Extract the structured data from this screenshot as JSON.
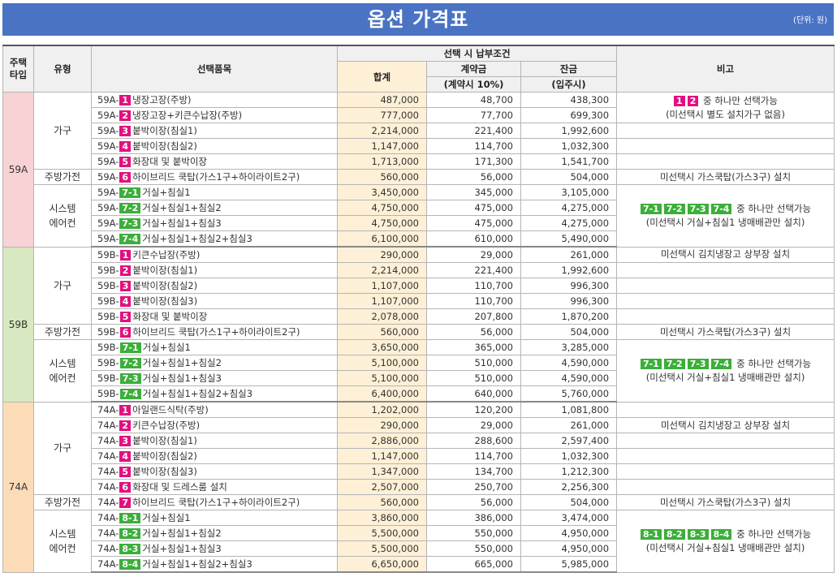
{
  "title": "옵션 가격표",
  "unit": "(단위: 원)",
  "headers": {
    "house_type": "주택타입",
    "category": "유형",
    "item": "선택품목",
    "payment_group": "선택 시 납부조건",
    "total": "합계",
    "deposit": "계약금",
    "deposit_sub": "(계약시 10%)",
    "balance": "잔금",
    "balance_sub": "(입주시)",
    "note": "비고"
  },
  "colors": {
    "title_bar": "#4a73c4",
    "badge_magenta": "#e2107f",
    "badge_green": "#3cae3a",
    "type_59a": "#f8d2d4",
    "type_59b": "#d8e8c0",
    "type_74a": "#fbdcb7",
    "total_bg": "#fdf0d6"
  },
  "groups": [
    {
      "type": "59A",
      "categories": [
        {
          "name": "가구",
          "rows": [
            {
              "prefix": "59A-",
              "badge": "1",
              "color": "mag",
              "name": "냉장고장(주방)",
              "total": "487,000",
              "deposit": "48,700",
              "balance": "438,300"
            },
            {
              "prefix": "59A-",
              "badge": "2",
              "color": "mag",
              "name": "냉장고장+키큰수납장(주방)",
              "total": "777,000",
              "deposit": "77,700",
              "balance": "699,300"
            },
            {
              "prefix": "59A-",
              "badge": "3",
              "color": "mag",
              "name": "붙박이장(침실1)",
              "total": "2,214,000",
              "deposit": "221,400",
              "balance": "1,992,600"
            },
            {
              "prefix": "59A-",
              "badge": "4",
              "color": "mag",
              "name": "붙박이장(침실2)",
              "total": "1,147,000",
              "deposit": "114,700",
              "balance": "1,032,300"
            },
            {
              "prefix": "59A-",
              "badge": "5",
              "color": "mag",
              "name": "화장대 및 붙박이장",
              "total": "1,713,000",
              "deposit": "171,300",
              "balance": "1,541,700"
            }
          ]
        },
        {
          "name": "주방가전",
          "rows": [
            {
              "prefix": "59A-",
              "badge": "6",
              "color": "mag",
              "name": "하이브리드 쿡탑(가스1구+하이라이트2구)",
              "total": "560,000",
              "deposit": "56,000",
              "balance": "504,000"
            }
          ]
        },
        {
          "name": "시스템 에어컨",
          "rows": [
            {
              "prefix": "59A-",
              "badge": "7-1",
              "color": "grn",
              "name": "거실+침실1",
              "total": "3,450,000",
              "deposit": "345,000",
              "balance": "3,105,000"
            },
            {
              "prefix": "59A-",
              "badge": "7-2",
              "color": "grn",
              "name": "거실+침실1+침실2",
              "total": "4,750,000",
              "deposit": "475,000",
              "balance": "4,275,000"
            },
            {
              "prefix": "59A-",
              "badge": "7-3",
              "color": "grn",
              "name": "거실+침실1+침실3",
              "total": "4,750,000",
              "deposit": "475,000",
              "balance": "4,275,000"
            },
            {
              "prefix": "59A-",
              "badge": "7-4",
              "color": "grn",
              "name": "거실+침실1+침실2+침실3",
              "total": "6,100,000",
              "deposit": "610,000",
              "balance": "5,490,000"
            }
          ]
        }
      ],
      "notes": {
        "n1_badges": [
          "1",
          "2"
        ],
        "n1_line1": "중 하나만 선택가능",
        "n1_line2": "(미선택시 별도 설치가구 없음)",
        "n2": "미선택시 가스쿡탑(가스3구) 설치",
        "n3_badges": [
          "7-1",
          "7-2",
          "7-3",
          "7-4"
        ],
        "n3_line1": "중 하나만 선택가능",
        "n3_line2": "(미선택시 거실+침실1 냉매배관만 설치)"
      }
    },
    {
      "type": "59B",
      "categories": [
        {
          "name": "가구",
          "rows": [
            {
              "prefix": "59B-",
              "badge": "1",
              "color": "mag",
              "name": "키큰수납장(주방)",
              "total": "290,000",
              "deposit": "29,000",
              "balance": "261,000"
            },
            {
              "prefix": "59B-",
              "badge": "2",
              "color": "mag",
              "name": "붙박이장(침실1)",
              "total": "2,214,000",
              "deposit": "221,400",
              "balance": "1,992,600"
            },
            {
              "prefix": "59B-",
              "badge": "3",
              "color": "mag",
              "name": "붙박이장(침실2)",
              "total": "1,107,000",
              "deposit": "110,700",
              "balance": "996,300"
            },
            {
              "prefix": "59B-",
              "badge": "4",
              "color": "mag",
              "name": "붙박이장(침실3)",
              "total": "1,107,000",
              "deposit": "110,700",
              "balance": "996,300"
            },
            {
              "prefix": "59B-",
              "badge": "5",
              "color": "mag",
              "name": "화장대 및 붙박이장",
              "total": "2,078,000",
              "deposit": "207,800",
              "balance": "1,870,200"
            }
          ]
        },
        {
          "name": "주방가전",
          "rows": [
            {
              "prefix": "59B-",
              "badge": "6",
              "color": "mag",
              "name": "하이브리드 쿡탑(가스1구+하이라이트2구)",
              "total": "560,000",
              "deposit": "56,000",
              "balance": "504,000"
            }
          ]
        },
        {
          "name": "시스템 에어컨",
          "rows": [
            {
              "prefix": "59B-",
              "badge": "7-1",
              "color": "grn",
              "name": "거실+침실1",
              "total": "3,650,000",
              "deposit": "365,000",
              "balance": "3,285,000"
            },
            {
              "prefix": "59B-",
              "badge": "7-2",
              "color": "grn",
              "name": "거실+침실1+침실2",
              "total": "5,100,000",
              "deposit": "510,000",
              "balance": "4,590,000"
            },
            {
              "prefix": "59B-",
              "badge": "7-3",
              "color": "grn",
              "name": "거실+침실1+침실3",
              "total": "5,100,000",
              "deposit": "510,000",
              "balance": "4,590,000"
            },
            {
              "prefix": "59B-",
              "badge": "7-4",
              "color": "grn",
              "name": "거실+침실1+침실2+침실3",
              "total": "6,400,000",
              "deposit": "640,000",
              "balance": "5,760,000"
            }
          ]
        }
      ],
      "notes": {
        "n1": "미선택시 김치냉장고 상부장 설치",
        "n2": "미선택시 가스쿡탑(가스3구) 설치",
        "n3_badges": [
          "7-1",
          "7-2",
          "7-3",
          "7-4"
        ],
        "n3_line1": "중 하나만 선택가능",
        "n3_line2": "(미선택시 거실+침실1 냉매배관만 설치)"
      }
    },
    {
      "type": "74A",
      "categories": [
        {
          "name": "가구",
          "rows": [
            {
              "prefix": "74A-",
              "badge": "1",
              "color": "mag",
              "name": "아일랜드식탁(주방)",
              "total": "1,202,000",
              "deposit": "120,200",
              "balance": "1,081,800"
            },
            {
              "prefix": "74A-",
              "badge": "2",
              "color": "mag",
              "name": "키큰수납장(주방)",
              "total": "290,000",
              "deposit": "29,000",
              "balance": "261,000"
            },
            {
              "prefix": "74A-",
              "badge": "3",
              "color": "mag",
              "name": "붙박이장(침실1)",
              "total": "2,886,000",
              "deposit": "288,600",
              "balance": "2,597,400"
            },
            {
              "prefix": "74A-",
              "badge": "4",
              "color": "mag",
              "name": "붙박이장(침실2)",
              "total": "1,147,000",
              "deposit": "114,700",
              "balance": "1,032,300"
            },
            {
              "prefix": "74A-",
              "badge": "5",
              "color": "mag",
              "name": "붙박이장(침실3)",
              "total": "1,347,000",
              "deposit": "134,700",
              "balance": "1,212,300"
            },
            {
              "prefix": "74A-",
              "badge": "6",
              "color": "mag",
              "name": "화장대 및 드레스룸 설치",
              "total": "2,507,000",
              "deposit": "250,700",
              "balance": "2,256,300"
            }
          ]
        },
        {
          "name": "주방가전",
          "rows": [
            {
              "prefix": "74A-",
              "badge": "7",
              "color": "mag",
              "name": "하이브리드 쿡탑(가스1구+하이라이트2구)",
              "total": "560,000",
              "deposit": "56,000",
              "balance": "504,000"
            }
          ]
        },
        {
          "name": "시스템 에어컨",
          "rows": [
            {
              "prefix": "74A-",
              "badge": "8-1",
              "color": "grn",
              "name": "거실+침실1",
              "total": "3,860,000",
              "deposit": "386,000",
              "balance": "3,474,000"
            },
            {
              "prefix": "74A-",
              "badge": "8-2",
              "color": "grn",
              "name": "거실+침실1+침실2",
              "total": "5,500,000",
              "deposit": "550,000",
              "balance": "4,950,000"
            },
            {
              "prefix": "74A-",
              "badge": "8-3",
              "color": "grn",
              "name": "거실+침실1+침실3",
              "total": "5,500,000",
              "deposit": "550,000",
              "balance": "4,950,000"
            },
            {
              "prefix": "74A-",
              "badge": "8-4",
              "color": "grn",
              "name": "거실+침실1+침실2+침실3",
              "total": "6,650,000",
              "deposit": "665,000",
              "balance": "5,985,000"
            }
          ]
        }
      ],
      "notes": {
        "n1": "미선택시 김치냉장고 상부장 설치",
        "n2": "미선택시 가스쿡탑(가스3구) 설치",
        "n3_badges": [
          "8-1",
          "8-2",
          "8-3",
          "8-4"
        ],
        "n3_line1": "중 하나만 선택가능",
        "n3_line2": "(미선택시 거실+침실1 냉매배관만 설치)"
      }
    }
  ]
}
